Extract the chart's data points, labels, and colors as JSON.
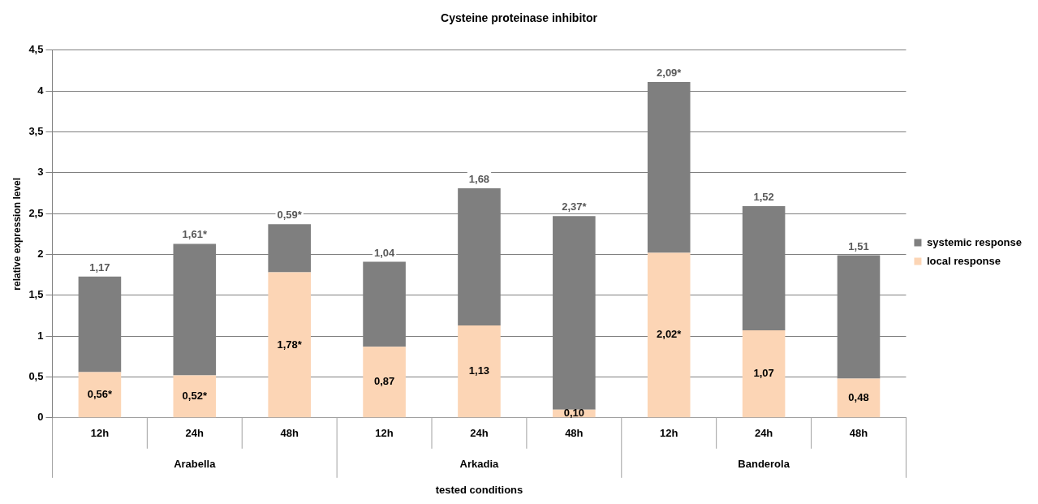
{
  "chart_data": {
    "type": "bar",
    "title": "Cysteine proteinase inhibitor",
    "xlabel": "tested conditions",
    "ylabel": "relative expression level",
    "categories": [
      "12h",
      "24h",
      "48h",
      "12h",
      "24h",
      "48h",
      "12h",
      "24h",
      "48h"
    ],
    "annotations": [
      "Arabella",
      "Arkadia",
      "Banderola"
    ],
    "stacked": true,
    "ylim": [
      0,
      4.5
    ],
    "yticks": [
      0,
      {
        "value": 0.5,
        "label": "0,5"
      },
      1,
      {
        "value": 1.5,
        "label": "1,5"
      },
      2,
      {
        "value": 2.5,
        "label": "2,5"
      },
      3,
      {
        "value": 3.5,
        "label": "3,5"
      },
      4,
      {
        "value": 4.5,
        "label": "4,5"
      }
    ],
    "grid": "y",
    "legend": "right",
    "series": [
      {
        "name": "local response",
        "color": "#fcd5b5",
        "values": [
          0.56,
          0.52,
          1.78,
          0.87,
          1.13,
          0.1,
          2.02,
          1.07,
          0.48
        ],
        "value_labels": [
          "0,56*",
          "0,52*",
          "1,78*",
          "0,87",
          "1,13",
          "0,10",
          "2,02*",
          "1,07",
          "0,48"
        ]
      },
      {
        "name": "systemic response",
        "color": "#7f7f7f",
        "values": [
          1.17,
          1.61,
          0.59,
          1.04,
          1.68,
          2.37,
          2.09,
          1.52,
          1.51
        ],
        "value_labels": [
          "1,17",
          "1,61*",
          "0,59*",
          "1,04",
          "1,68",
          "2,37*",
          "2,09*",
          "1,52",
          "1,51"
        ]
      }
    ]
  }
}
